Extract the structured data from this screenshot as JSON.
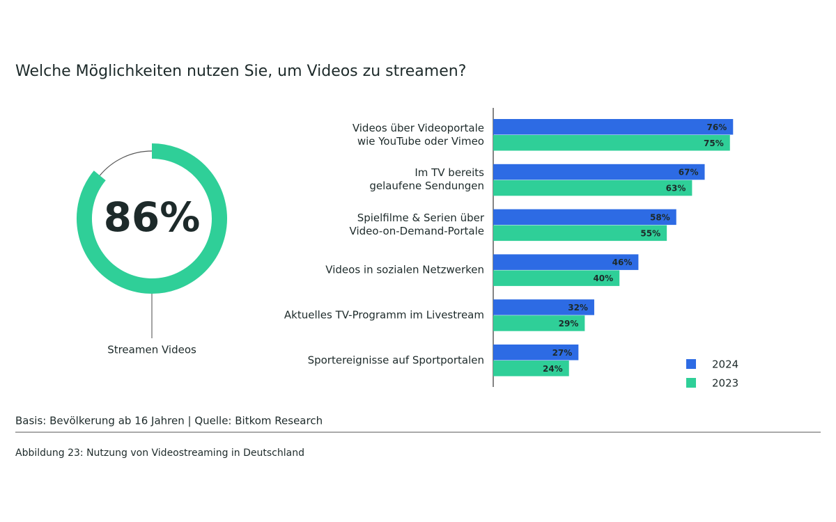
{
  "title": "Welche Möglichkeiten nutzen Sie, um Videos zu streamen?",
  "chart_data": [
    {
      "type": "donut",
      "categories": [
        "Streamen Videos"
      ],
      "values": [
        86
      ],
      "value_labels": [
        "86%"
      ],
      "color": "#2fcf98",
      "label_color": "#2d6be4"
    },
    {
      "type": "bar",
      "orientation": "horizontal",
      "categories": [
        "Videos über Videoportale\nwie YouTube oder Vimeo",
        "Im TV bereits\ngelaufene Sendungen",
        "Spielfilme & Serien über\nVideo-on-Demand-Portale",
        "Videos in sozialen Netzwerken",
        "Aktuelles TV-Programm im Livestream",
        "Sportereignisse auf Sportportalen"
      ],
      "series": [
        {
          "name": "2024",
          "color": "#2d6be4",
          "values": [
            76,
            67,
            58,
            46,
            32,
            27
          ],
          "value_labels": [
            "76%",
            "67%",
            "58%",
            "46%",
            "32%",
            "27%"
          ]
        },
        {
          "name": "2023",
          "color": "#2fcf98",
          "values": [
            75,
            63,
            55,
            40,
            29,
            24
          ],
          "value_labels": [
            "75%",
            "63%",
            "55%",
            "40%",
            "29%",
            "24%"
          ]
        }
      ],
      "legend": "bottom-right"
    }
  ],
  "source": "Basis: Bevölkerung ab 16 Jahren | Quelle: Bitkom Research",
  "caption": "Abbildung 23: Nutzung von Videostreaming in Deutschland"
}
